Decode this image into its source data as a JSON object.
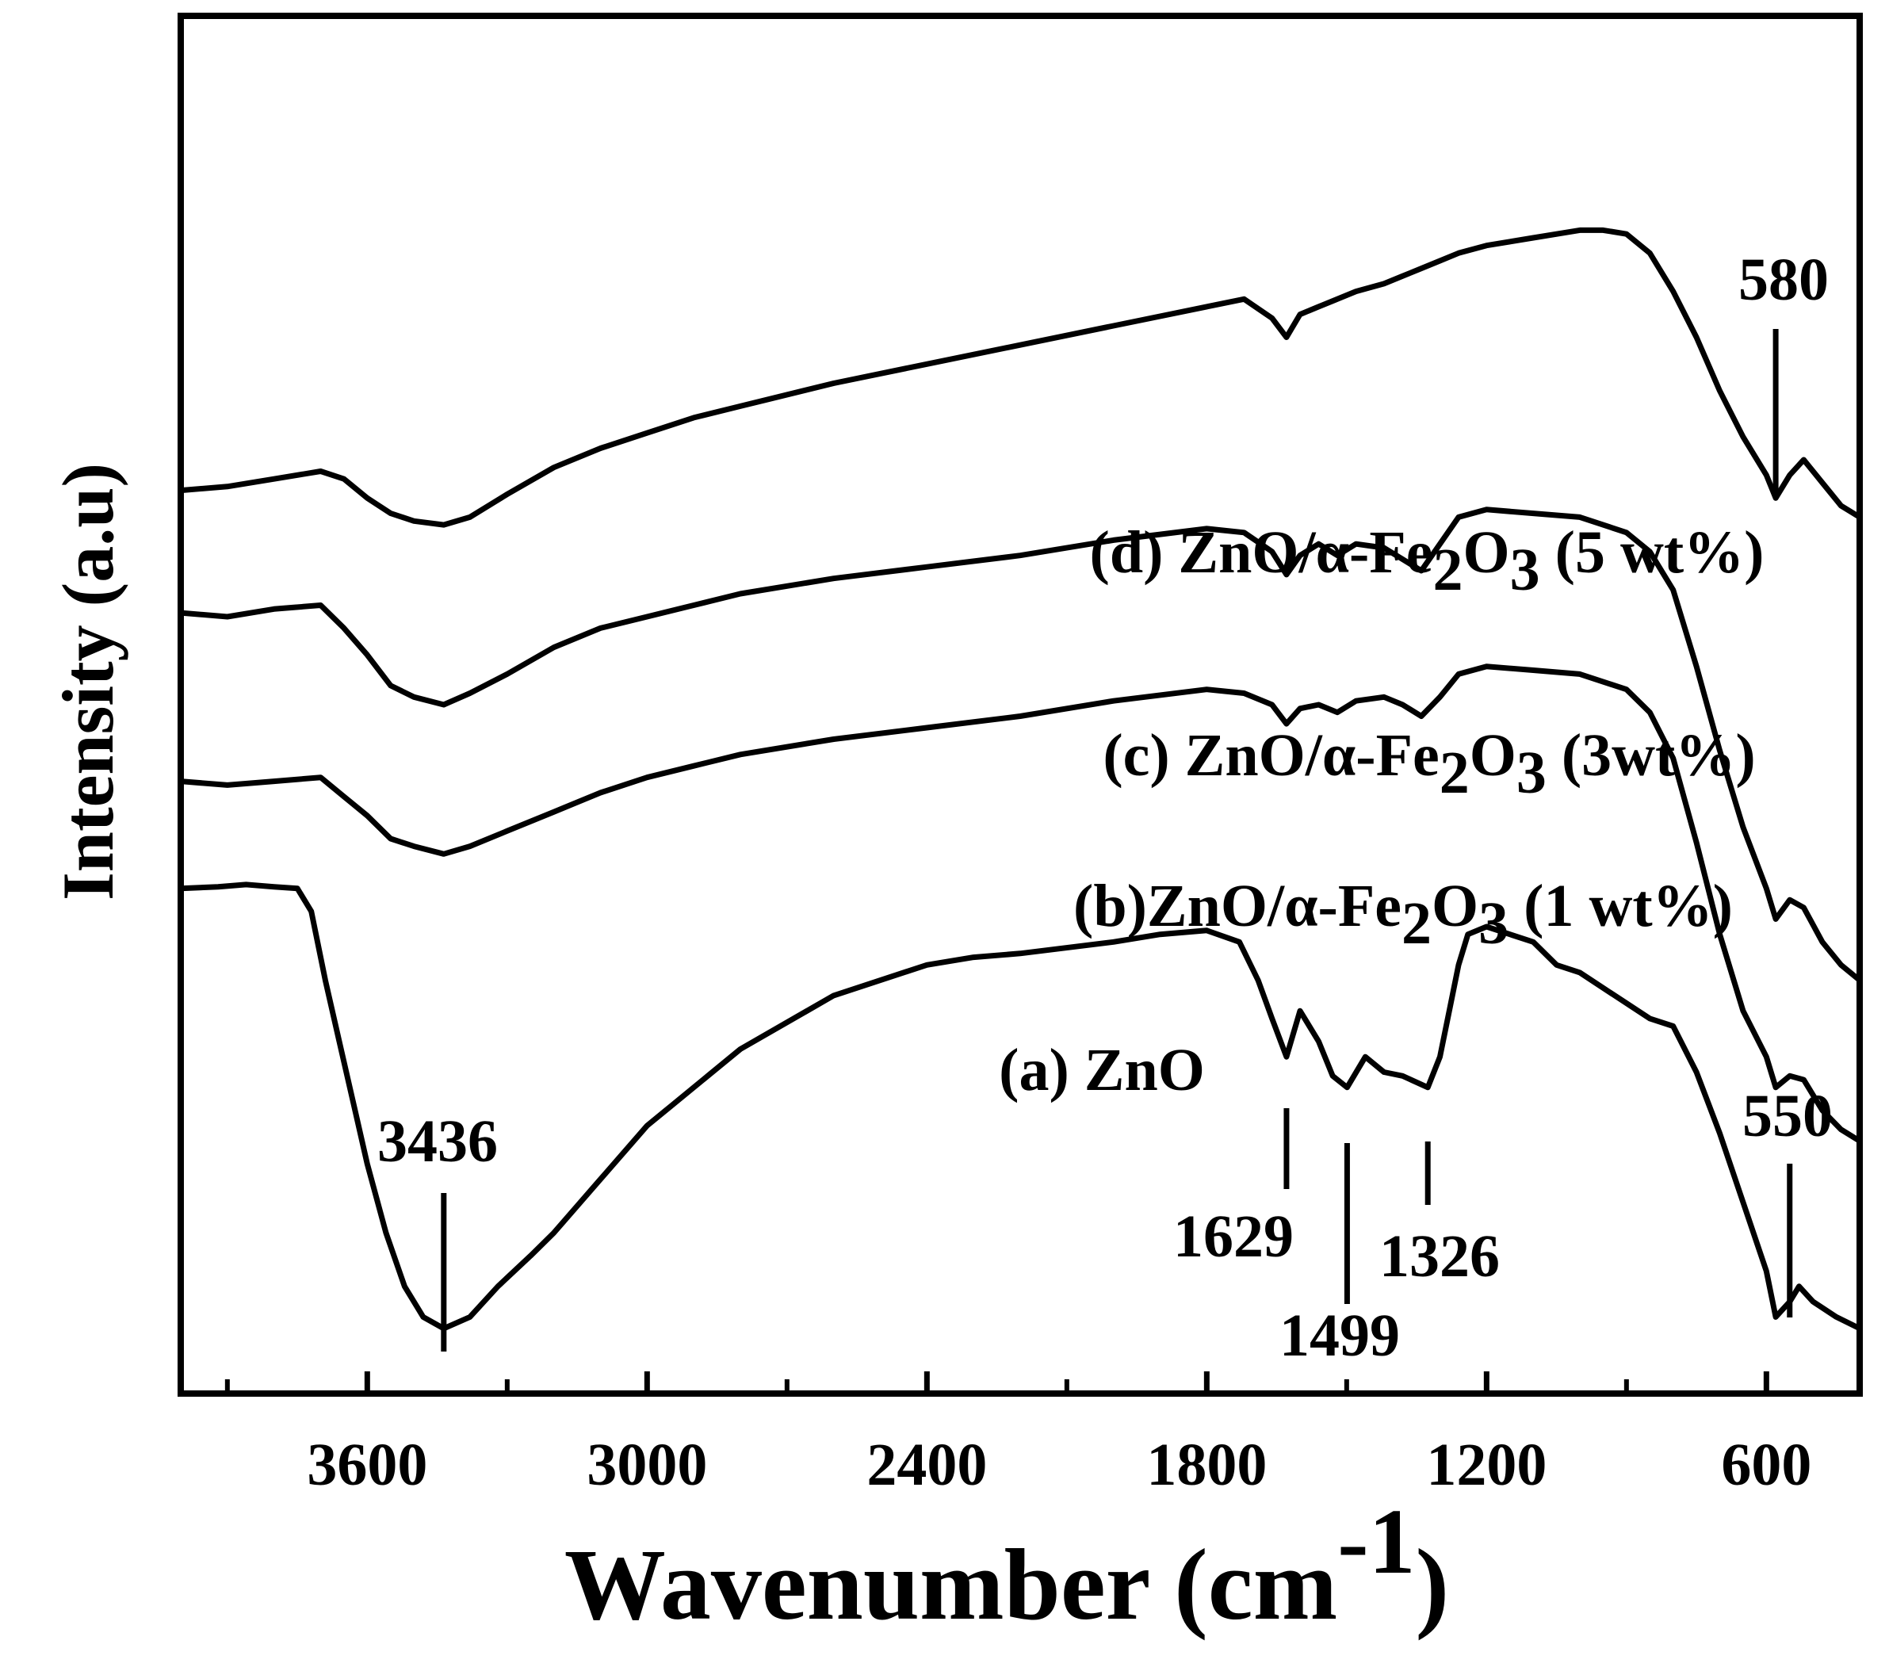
{
  "chart_data": {
    "type": "line",
    "title": "",
    "xlabel": "Wavenumber (cm",
    "xlabel_superscript": "-1",
    "xlabel_close": ")",
    "ylabel": "Intensity (a.u)",
    "xlim": [
      4000,
      400
    ],
    "x_reversed": true,
    "xticks": [
      3600,
      3000,
      2400,
      1800,
      1200,
      600
    ],
    "xtick_labels": [
      "3600",
      "3000",
      "2400",
      "1800",
      "1200",
      "600"
    ],
    "minor_xticks": [
      3900,
      3300,
      2700,
      2100,
      1500,
      900
    ],
    "yticks_shown": false,
    "grid": false,
    "series": [
      {
        "name": "(a) ZnO",
        "label_main": "(a) ZnO",
        "label_tail": "",
        "points": [
          [
            4000,
            0.86
          ],
          [
            3920,
            0.862
          ],
          [
            3860,
            0.865
          ],
          [
            3800,
            0.862
          ],
          [
            3750,
            0.86
          ],
          [
            3720,
            0.83
          ],
          [
            3690,
            0.74
          ],
          [
            3660,
            0.66
          ],
          [
            3630,
            0.58
          ],
          [
            3600,
            0.5
          ],
          [
            3560,
            0.41
          ],
          [
            3520,
            0.34
          ],
          [
            3480,
            0.3
          ],
          [
            3436,
            0.285
          ],
          [
            3380,
            0.3
          ],
          [
            3320,
            0.34
          ],
          [
            3250,
            0.38
          ],
          [
            3200,
            0.41
          ],
          [
            3100,
            0.48
          ],
          [
            3000,
            0.55
          ],
          [
            2950,
            0.575
          ],
          [
            2800,
            0.65
          ],
          [
            2600,
            0.72
          ],
          [
            2400,
            0.76
          ],
          [
            2300,
            0.77
          ],
          [
            2200,
            0.775
          ],
          [
            2000,
            0.79
          ],
          [
            1900,
            0.8
          ],
          [
            1800,
            0.805
          ],
          [
            1730,
            0.79
          ],
          [
            1690,
            0.74
          ],
          [
            1660,
            0.69
          ],
          [
            1629,
            0.64
          ],
          [
            1600,
            0.7
          ],
          [
            1560,
            0.66
          ],
          [
            1530,
            0.615
          ],
          [
            1499,
            0.6
          ],
          [
            1460,
            0.64
          ],
          [
            1420,
            0.62
          ],
          [
            1380,
            0.615
          ],
          [
            1326,
            0.6
          ],
          [
            1300,
            0.64
          ],
          [
            1280,
            0.7
          ],
          [
            1260,
            0.76
          ],
          [
            1240,
            0.8
          ],
          [
            1200,
            0.81
          ],
          [
            1150,
            0.8
          ],
          [
            1100,
            0.79
          ],
          [
            1050,
            0.76
          ],
          [
            1000,
            0.75
          ],
          [
            950,
            0.73
          ],
          [
            900,
            0.71
          ],
          [
            850,
            0.69
          ],
          [
            800,
            0.68
          ],
          [
            750,
            0.62
          ],
          [
            700,
            0.54
          ],
          [
            650,
            0.45
          ],
          [
            600,
            0.36
          ],
          [
            580,
            0.3
          ],
          [
            550,
            0.32
          ],
          [
            530,
            0.34
          ],
          [
            500,
            0.32
          ],
          [
            450,
            0.3
          ],
          [
            400,
            0.285
          ]
        ]
      },
      {
        "name": "(b)ZnO/α-Fe2O3 (1 wt%)",
        "label_main": "(b)ZnO/α-Fe",
        "label_sub1": "2",
        "label_mid": "O",
        "label_sub2": "3",
        "label_tail": " (1 wt%)",
        "points": [
          [
            4000,
            1.0
          ],
          [
            3900,
            0.995
          ],
          [
            3800,
            1.0
          ],
          [
            3700,
            1.005
          ],
          [
            3650,
            0.98
          ],
          [
            3600,
            0.955
          ],
          [
            3550,
            0.925
          ],
          [
            3500,
            0.915
          ],
          [
            3436,
            0.905
          ],
          [
            3380,
            0.915
          ],
          [
            3300,
            0.935
          ],
          [
            3200,
            0.96
          ],
          [
            3100,
            0.985
          ],
          [
            3000,
            1.005
          ],
          [
            2900,
            1.02
          ],
          [
            2800,
            1.035
          ],
          [
            2600,
            1.055
          ],
          [
            2400,
            1.07
          ],
          [
            2200,
            1.085
          ],
          [
            2000,
            1.105
          ],
          [
            1800,
            1.12
          ],
          [
            1720,
            1.115
          ],
          [
            1660,
            1.1
          ],
          [
            1629,
            1.075
          ],
          [
            1600,
            1.095
          ],
          [
            1560,
            1.1
          ],
          [
            1520,
            1.09
          ],
          [
            1480,
            1.105
          ],
          [
            1420,
            1.11
          ],
          [
            1380,
            1.1
          ],
          [
            1340,
            1.085
          ],
          [
            1300,
            1.11
          ],
          [
            1260,
            1.14
          ],
          [
            1200,
            1.15
          ],
          [
            1100,
            1.145
          ],
          [
            1000,
            1.14
          ],
          [
            900,
            1.12
          ],
          [
            850,
            1.09
          ],
          [
            800,
            1.03
          ],
          [
            750,
            0.92
          ],
          [
            700,
            0.8
          ],
          [
            650,
            0.7
          ],
          [
            600,
            0.64
          ],
          [
            580,
            0.6
          ],
          [
            550,
            0.615
          ],
          [
            520,
            0.61
          ],
          [
            480,
            0.57
          ],
          [
            440,
            0.545
          ],
          [
            400,
            0.53
          ]
        ]
      },
      {
        "name": "(c) ZnO/α-Fe2O3 (3wt%)",
        "label_main": "(c) ZnO/α-Fe",
        "label_sub1": "2",
        "label_mid": "O",
        "label_sub2": "3",
        "label_tail": " (3wt%)",
        "points": [
          [
            4000,
            1.22
          ],
          [
            3900,
            1.215
          ],
          [
            3800,
            1.225
          ],
          [
            3700,
            1.23
          ],
          [
            3650,
            1.2
          ],
          [
            3600,
            1.165
          ],
          [
            3550,
            1.125
          ],
          [
            3500,
            1.11
          ],
          [
            3436,
            1.1
          ],
          [
            3380,
            1.115
          ],
          [
            3300,
            1.14
          ],
          [
            3200,
            1.175
          ],
          [
            3100,
            1.2
          ],
          [
            3000,
            1.215
          ],
          [
            2900,
            1.23
          ],
          [
            2800,
            1.245
          ],
          [
            2600,
            1.265
          ],
          [
            2400,
            1.28
          ],
          [
            2200,
            1.295
          ],
          [
            2000,
            1.315
          ],
          [
            1800,
            1.33
          ],
          [
            1720,
            1.325
          ],
          [
            1660,
            1.3
          ],
          [
            1629,
            1.27
          ],
          [
            1600,
            1.295
          ],
          [
            1560,
            1.31
          ],
          [
            1520,
            1.295
          ],
          [
            1480,
            1.31
          ],
          [
            1420,
            1.305
          ],
          [
            1380,
            1.29
          ],
          [
            1340,
            1.275
          ],
          [
            1300,
            1.31
          ],
          [
            1260,
            1.345
          ],
          [
            1200,
            1.355
          ],
          [
            1100,
            1.35
          ],
          [
            1000,
            1.345
          ],
          [
            900,
            1.325
          ],
          [
            850,
            1.3
          ],
          [
            800,
            1.25
          ],
          [
            750,
            1.15
          ],
          [
            700,
            1.04
          ],
          [
            650,
            0.94
          ],
          [
            600,
            0.86
          ],
          [
            580,
            0.82
          ],
          [
            550,
            0.845
          ],
          [
            520,
            0.835
          ],
          [
            480,
            0.79
          ],
          [
            440,
            0.76
          ],
          [
            400,
            0.74
          ]
        ]
      },
      {
        "name": "(d) ZnO/α-Fe2O3 (5 wt%)",
        "label_main": "(d) ZnO/α-Fe",
        "label_sub1": "2",
        "label_mid": "O",
        "label_sub2": "3",
        "label_tail": " (5 wt%)",
        "points": [
          [
            4000,
            1.38
          ],
          [
            3900,
            1.385
          ],
          [
            3800,
            1.395
          ],
          [
            3700,
            1.405
          ],
          [
            3650,
            1.395
          ],
          [
            3600,
            1.37
          ],
          [
            3550,
            1.35
          ],
          [
            3500,
            1.34
          ],
          [
            3436,
            1.335
          ],
          [
            3380,
            1.345
          ],
          [
            3300,
            1.375
          ],
          [
            3200,
            1.41
          ],
          [
            3100,
            1.435
          ],
          [
            3000,
            1.455
          ],
          [
            2900,
            1.475
          ],
          [
            2800,
            1.49
          ],
          [
            2600,
            1.52
          ],
          [
            2400,
            1.545
          ],
          [
            2200,
            1.57
          ],
          [
            2000,
            1.595
          ],
          [
            1800,
            1.62
          ],
          [
            1720,
            1.63
          ],
          [
            1660,
            1.605
          ],
          [
            1629,
            1.58
          ],
          [
            1600,
            1.61
          ],
          [
            1560,
            1.62
          ],
          [
            1520,
            1.63
          ],
          [
            1480,
            1.64
          ],
          [
            1420,
            1.65
          ],
          [
            1380,
            1.66
          ],
          [
            1340,
            1.67
          ],
          [
            1300,
            1.68
          ],
          [
            1260,
            1.69
          ],
          [
            1200,
            1.7
          ],
          [
            1100,
            1.71
          ],
          [
            1000,
            1.72
          ],
          [
            950,
            1.72
          ],
          [
            900,
            1.715
          ],
          [
            850,
            1.69
          ],
          [
            800,
            1.64
          ],
          [
            750,
            1.58
          ],
          [
            700,
            1.51
          ],
          [
            650,
            1.45
          ],
          [
            600,
            1.4
          ],
          [
            580,
            1.37
          ],
          [
            550,
            1.4
          ],
          [
            520,
            1.42
          ],
          [
            480,
            1.39
          ],
          [
            440,
            1.36
          ],
          [
            400,
            1.345
          ]
        ]
      }
    ],
    "peak_annotations": [
      {
        "label": "3436",
        "x": 3436
      },
      {
        "label": "1629",
        "x": 1629
      },
      {
        "label": "1499",
        "x": 1499
      },
      {
        "label": "1326",
        "x": 1326
      },
      {
        "label": "550",
        "x": 550
      },
      {
        "label": "580",
        "x": 580
      }
    ]
  }
}
